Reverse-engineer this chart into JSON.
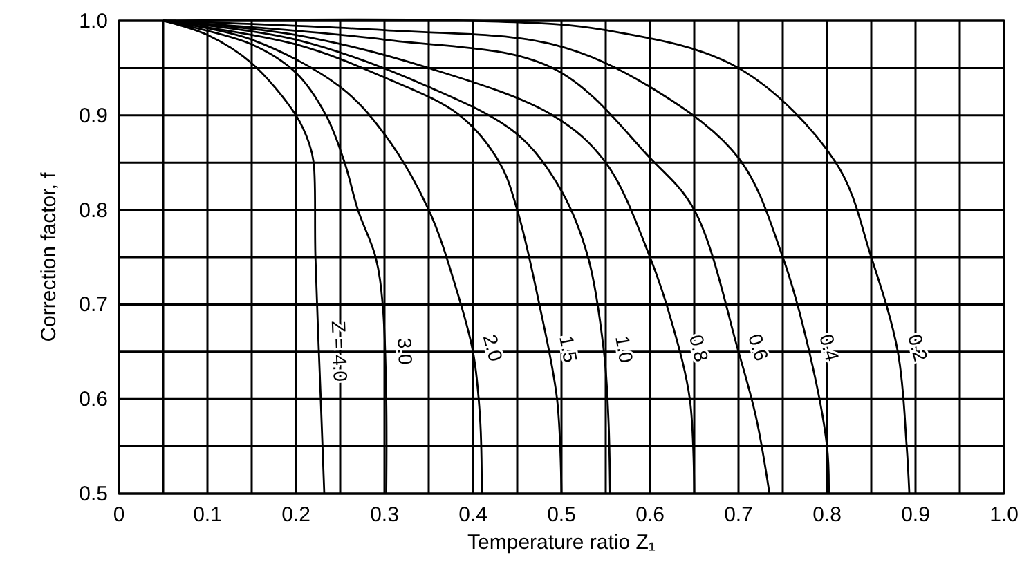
{
  "chart_data": {
    "type": "line",
    "xlabel": "Temperature ratio Z₁",
    "ylabel": "Correction factor, f",
    "xlim": [
      0,
      1
    ],
    "ylim": [
      0.5,
      1
    ],
    "xticks": [
      0,
      {
        "value": 0.05,
        "label": null
      },
      0.1,
      {
        "value": 0.15,
        "label": null
      },
      0.2,
      {
        "value": 0.25,
        "label": null
      },
      0.3,
      {
        "value": 0.35,
        "label": null
      },
      0.4,
      {
        "value": 0.45,
        "label": null
      },
      0.5,
      {
        "value": 0.55,
        "label": null
      },
      0.6,
      {
        "value": 0.65,
        "label": null
      },
      0.7,
      {
        "value": 0.75,
        "label": null
      },
      0.8,
      {
        "value": 0.85,
        "label": null
      },
      0.9,
      {
        "value": 0.95,
        "label": null
      },
      {
        "value": 1,
        "label": "1.0"
      }
    ],
    "yticks": [
      0.5,
      {
        "value": 0.55,
        "label": null
      },
      0.6,
      {
        "value": 0.65,
        "label": null
      },
      0.7,
      {
        "value": 0.75,
        "label": null
      },
      0.8,
      {
        "value": 0.85,
        "label": null
      },
      0.9,
      {
        "value": 0.95,
        "label": null
      },
      {
        "value": 1,
        "label": "1.0"
      }
    ],
    "grid": true,
    "marker": "none",
    "line_style": "solid",
    "series": [
      {
        "name": "Z = 4.0",
        "color": "#000000",
        "x": [
          0.05,
          0.1,
          0.15,
          0.2,
          0.215,
          0.22,
          0.222,
          0.228,
          0.232
        ],
        "values": [
          1,
          0.985,
          0.955,
          0.9,
          0.87,
          0.85,
          0.75,
          0.6,
          0.5
        ]
      },
      {
        "name": "3.0",
        "color": "#000000",
        "x": [
          0.05,
          0.15,
          0.2,
          0.234,
          0.255,
          0.27,
          0.29,
          0.298,
          0.302,
          0.302
        ],
        "values": [
          1,
          0.975,
          0.945,
          0.9,
          0.85,
          0.8,
          0.75,
          0.7,
          0.6,
          0.5
        ]
      },
      {
        "name": "2.0",
        "color": "#000000",
        "x": [
          0.05,
          0.15,
          0.25,
          0.3,
          0.35,
          0.38,
          0.4,
          0.408,
          0.41
        ],
        "values": [
          1,
          0.98,
          0.93,
          0.88,
          0.8,
          0.72,
          0.65,
          0.58,
          0.5
        ]
      },
      {
        "name": "1.5",
        "color": "#000000",
        "x": [
          0.05,
          0.2,
          0.3,
          0.385,
          0.43,
          0.45,
          0.475,
          0.495,
          0.5
        ],
        "values": [
          1,
          0.975,
          0.94,
          0.9,
          0.85,
          0.8,
          0.7,
          0.6,
          0.5
        ]
      },
      {
        "name": "1.0",
        "color": "#000000",
        "x": [
          0.05,
          0.2,
          0.35,
          0.45,
          0.5,
          0.53,
          0.548,
          0.553,
          0.555
        ],
        "values": [
          1,
          0.98,
          0.93,
          0.88,
          0.82,
          0.75,
          0.65,
          0.58,
          0.5
        ]
      },
      {
        "name": "0.8",
        "color": "#000000",
        "x": [
          0.05,
          0.2,
          0.35,
          0.49,
          0.55,
          0.6,
          0.625,
          0.645,
          0.65
        ],
        "values": [
          1,
          0.985,
          0.95,
          0.9,
          0.85,
          0.75,
          0.68,
          0.6,
          0.5
        ]
      },
      {
        "name": "0.6",
        "color": "#000000",
        "x": [
          0.05,
          0.3,
          0.49,
          0.6,
          0.65,
          0.7,
          0.72,
          0.735
        ],
        "values": [
          1,
          0.98,
          0.95,
          0.855,
          0.8,
          0.65,
          0.58,
          0.5
        ]
      },
      {
        "name": "0.4",
        "color": "#000000",
        "x": [
          0.05,
          0.3,
          0.49,
          0.6,
          0.7,
          0.75,
          0.78,
          0.8,
          0.802
        ],
        "values": [
          1,
          0.99,
          0.975,
          0.93,
          0.855,
          0.75,
          0.65,
          0.55,
          0.5
        ]
      },
      {
        "name": "0.2",
        "color": "#000000",
        "x": [
          0.05,
          0.4,
          0.55,
          0.7,
          0.81,
          0.85,
          0.88,
          0.89,
          0.893
        ],
        "values": [
          1,
          1,
          0.99,
          0.95,
          0.85,
          0.75,
          0.65,
          0.55,
          0.5
        ]
      }
    ]
  }
}
